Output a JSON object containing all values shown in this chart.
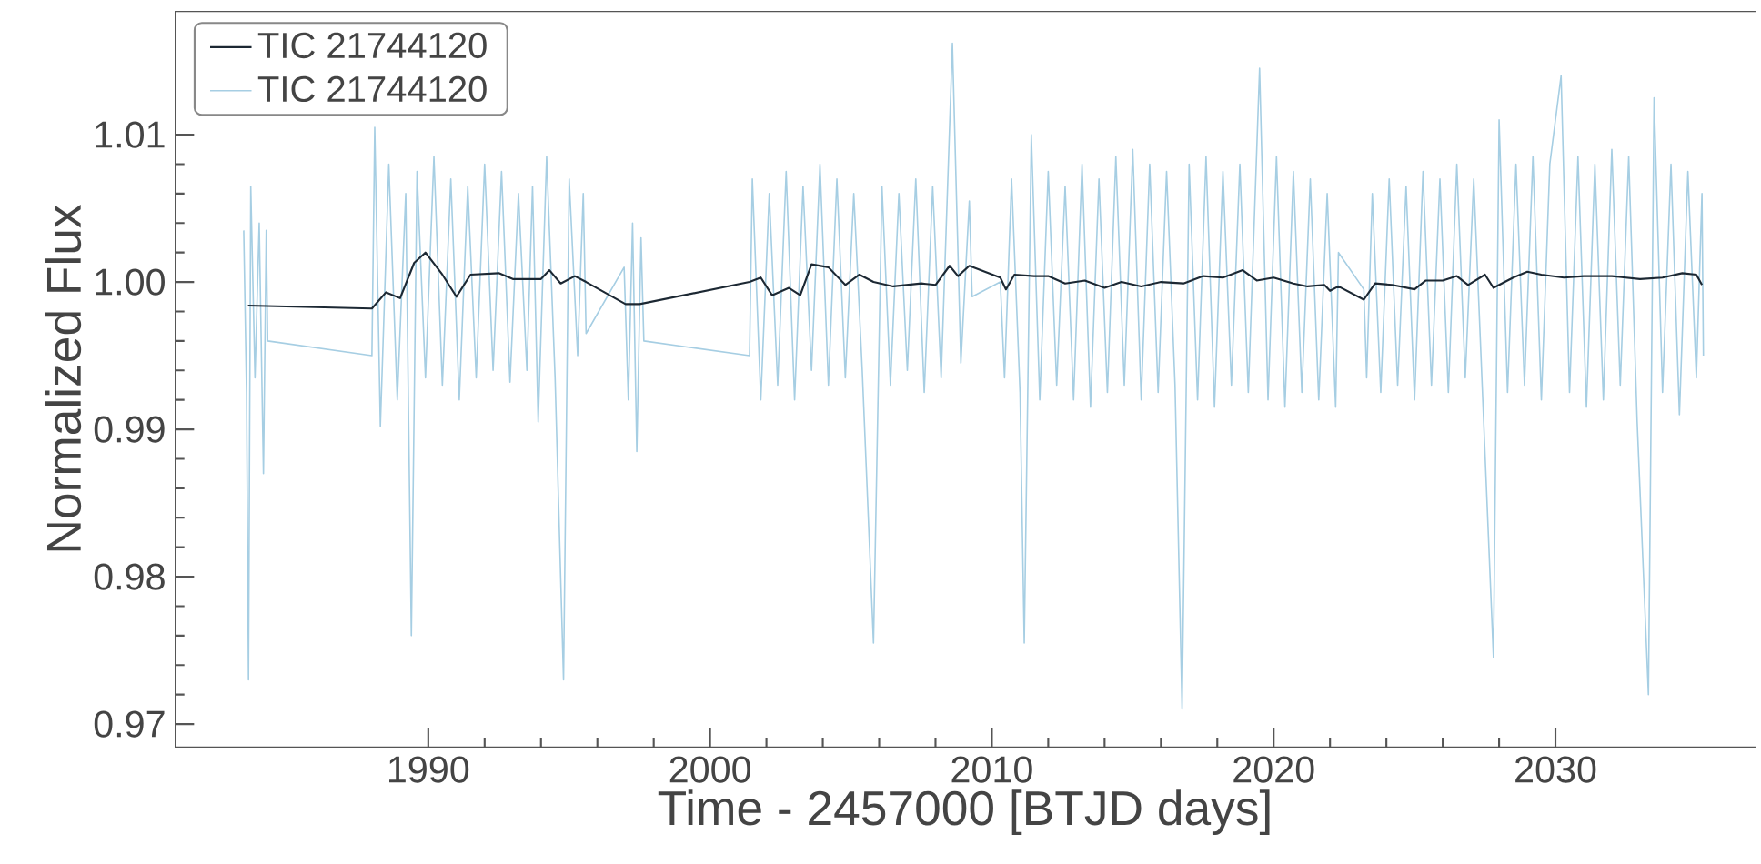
{
  "chart_data": {
    "type": "line",
    "xlabel": "Time - 2457000 [BTJD days]",
    "ylabel": "Normalized Flux",
    "xlim": [
      1981,
      2037.1
    ],
    "ylim": [
      0.9684,
      1.0184
    ],
    "xticks": [
      1990,
      2000,
      2010,
      2020,
      2030
    ],
    "yticks": [
      0.97,
      0.98,
      0.99,
      {
        "value": 1.0,
        "label": "1.00"
      },
      1.01
    ],
    "legend": "top left",
    "series": [
      {
        "name": "TIC 21744120",
        "color": "#1c2833",
        "x": [
          1983.6,
          1988.0,
          1988.5,
          1989.0,
          1989.5,
          1989.9,
          1990.5,
          1991.0,
          1991.5,
          1992.5,
          1993.0,
          1994.0,
          1994.3,
          1994.7,
          1995.2,
          1995.6,
          1997.0,
          1997.5,
          2001.4,
          2001.8,
          2002.2,
          2002.8,
          2003.2,
          2003.6,
          2004.2,
          2004.8,
          2005.3,
          2005.8,
          2006.5,
          2007.5,
          2008.0,
          2008.5,
          2008.8,
          2009.2,
          2010.3,
          2010.5,
          2010.8,
          2011.5,
          2012.0,
          2012.6,
          2013.3,
          2014.0,
          2014.6,
          2015.3,
          2016.0,
          2016.8,
          2017.5,
          2018.2,
          2018.9,
          2019.4,
          2020.0,
          2020.7,
          2021.2,
          2021.8,
          2022.0,
          2022.3,
          2023.2,
          2023.6,
          2024.2,
          2025.0,
          2025.4,
          2026.0,
          2026.5,
          2026.9,
          2027.5,
          2027.8,
          2028.5,
          2029.0,
          2029.5,
          2030.3,
          2031.0,
          2032.0,
          2033.0,
          2033.8,
          2034.5,
          2035.0,
          2035.2
        ],
        "values": [
          0.9984,
          0.9982,
          0.9993,
          0.9989,
          1.0013,
          1.002,
          1.0005,
          0.999,
          1.0005,
          1.0006,
          1.0002,
          1.0002,
          1.0008,
          0.9999,
          1.0004,
          1.0,
          0.9985,
          0.9985,
          1.0,
          1.0003,
          0.9991,
          0.9996,
          0.9991,
          1.0012,
          1.001,
          0.9998,
          1.0005,
          1.0,
          0.9997,
          0.9999,
          0.9998,
          1.0011,
          1.0004,
          1.0011,
          1.0003,
          0.9995,
          1.0005,
          1.0004,
          1.0004,
          0.9999,
          1.0001,
          0.9996,
          1.0,
          0.9997,
          1.0,
          0.9999,
          1.0004,
          1.0003,
          1.0008,
          1.0001,
          1.0003,
          0.9999,
          0.9997,
          0.9998,
          0.9994,
          0.9997,
          0.9988,
          0.9999,
          0.9998,
          0.9995,
          1.0001,
          1.0001,
          1.0004,
          0.9998,
          1.0005,
          0.9996,
          1.0003,
          1.0007,
          1.0005,
          1.0003,
          1.0004,
          1.0004,
          1.0002,
          1.0003,
          1.0006,
          1.0005,
          0.9998
        ]
      },
      {
        "name": "TIC 21744120",
        "color": "#a6cee3",
        "x": [
          1983.45,
          1983.55,
          1983.62,
          1983.7,
          1983.85,
          1984.0,
          1984.15,
          1984.25,
          1984.3,
          1988.0,
          1988.1,
          1988.3,
          1988.6,
          1988.9,
          1989.2,
          1989.4,
          1989.6,
          1989.9,
          1990.2,
          1990.5,
          1990.8,
          1991.1,
          1991.4,
          1991.7,
          1992.0,
          1992.3,
          1992.6,
          1992.9,
          1993.2,
          1993.5,
          1993.7,
          1993.9,
          1994.2,
          1994.5,
          1994.8,
          1995.0,
          1995.3,
          1995.5,
          1995.6,
          1996.95,
          1997.1,
          1997.25,
          1997.4,
          1997.55,
          1997.65,
          2001.4,
          2001.5,
          2001.8,
          2002.1,
          2002.4,
          2002.7,
          2003.0,
          2003.3,
          2003.6,
          2003.9,
          2004.2,
          2004.5,
          2004.8,
          2005.1,
          2005.4,
          2005.8,
          2006.1,
          2006.4,
          2006.7,
          2007.0,
          2007.3,
          2007.6,
          2007.9,
          2008.2,
          2008.6,
          2008.9,
          2009.2,
          2009.3,
          2010.3,
          2010.45,
          2010.7,
          2011.0,
          2011.15,
          2011.4,
          2011.7,
          2012.0,
          2012.3,
          2012.6,
          2012.9,
          2013.2,
          2013.5,
          2013.8,
          2014.1,
          2014.4,
          2014.7,
          2015.0,
          2015.3,
          2015.6,
          2015.9,
          2016.2,
          2016.5,
          2016.75,
          2017.0,
          2017.3,
          2017.6,
          2017.9,
          2018.2,
          2018.5,
          2018.8,
          2019.1,
          2019.5,
          2019.8,
          2020.1,
          2020.4,
          2020.7,
          2021.0,
          2021.3,
          2021.6,
          2021.9,
          2022.2,
          2022.3,
          2023.2,
          2023.3,
          2023.5,
          2023.8,
          2024.1,
          2024.4,
          2024.7,
          2025.0,
          2025.3,
          2025.6,
          2025.9,
          2026.2,
          2026.5,
          2026.8,
          2027.1,
          2027.4,
          2027.8,
          2028.0,
          2028.3,
          2028.6,
          2028.9,
          2029.2,
          2029.5,
          2029.8,
          2030.2,
          2030.5,
          2030.8,
          2031.1,
          2031.4,
          2031.7,
          2032.0,
          2032.3,
          2032.6,
          2032.9,
          2033.3,
          2033.5,
          2033.8,
          2034.1,
          2034.4,
          2034.7,
          2035.0,
          2035.2,
          2035.25
        ],
        "values": [
          1.0035,
          0.9925,
          0.973,
          1.0065,
          0.9935,
          1.004,
          0.987,
          1.0035,
          0.996,
          0.995,
          1.0105,
          0.9902,
          1.008,
          0.992,
          1.006,
          0.976,
          1.0075,
          0.9935,
          1.0085,
          0.993,
          1.007,
          0.992,
          1.0065,
          0.9935,
          1.008,
          0.994,
          1.0075,
          0.9932,
          1.006,
          0.994,
          1.0065,
          0.9905,
          1.0085,
          0.9935,
          0.973,
          1.007,
          0.995,
          1.006,
          0.9965,
          1.001,
          0.992,
          1.004,
          0.9885,
          1.003,
          0.996,
          0.995,
          1.007,
          0.992,
          1.006,
          0.993,
          1.0075,
          0.992,
          1.0065,
          0.994,
          1.008,
          0.993,
          1.007,
          0.9935,
          1.006,
          0.994,
          0.9755,
          1.0065,
          0.993,
          1.006,
          0.994,
          1.007,
          0.9925,
          1.0065,
          0.9935,
          1.0162,
          0.9945,
          1.0055,
          0.999,
          1.0,
          0.9935,
          1.007,
          0.9925,
          0.9755,
          1.01,
          0.992,
          1.0075,
          0.993,
          1.0065,
          0.992,
          1.008,
          0.9915,
          1.007,
          0.9925,
          1.0085,
          0.993,
          1.009,
          0.992,
          1.008,
          0.9925,
          1.0075,
          0.993,
          0.971,
          1.008,
          0.992,
          1.0085,
          0.9915,
          1.0075,
          0.993,
          1.008,
          0.9925,
          1.0145,
          0.992,
          1.0085,
          0.9915,
          1.0075,
          0.9925,
          1.007,
          0.992,
          1.006,
          0.9915,
          1.002,
          0.9995,
          0.9935,
          1.006,
          0.9925,
          1.007,
          0.993,
          1.0065,
          0.992,
          1.0075,
          0.993,
          1.007,
          0.9925,
          1.008,
          0.9935,
          1.007,
          0.993,
          0.9745,
          1.011,
          0.9925,
          1.008,
          0.993,
          1.0085,
          0.992,
          1.008,
          1.014,
          0.9925,
          1.0085,
          0.9915,
          1.008,
          0.992,
          1.009,
          0.993,
          1.0085,
          0.9905,
          0.972,
          1.0125,
          0.9925,
          1.008,
          0.991,
          1.0075,
          0.9935,
          1.006,
          0.995
        ]
      }
    ]
  }
}
